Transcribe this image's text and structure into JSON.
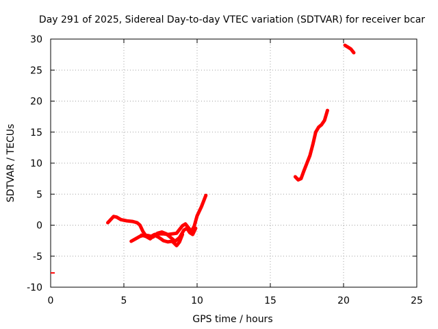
{
  "chart_data": {
    "type": "scatter",
    "title": "Day 291 of 2025, Sidereal Day-to-day VTEC variation (SDTVAR) for receiver bcar",
    "xlabel": "GPS time / hours",
    "ylabel": "SDTVAR / TECUs",
    "xlim": [
      0,
      25
    ],
    "ylim": [
      -10,
      30
    ],
    "xticks": [
      0,
      5,
      10,
      15,
      20,
      25
    ],
    "yticks": [
      -10,
      -5,
      0,
      5,
      10,
      15,
      20,
      25,
      30
    ],
    "grid": true,
    "legend": "none",
    "series_color": "#ff0000",
    "series": [
      {
        "values": [
          [
            3.9,
            0.4
          ],
          [
            4.1,
            0.9
          ],
          [
            4.3,
            1.4
          ],
          [
            4.5,
            1.3
          ],
          [
            4.8,
            0.9
          ],
          [
            5.2,
            0.7
          ],
          [
            5.6,
            0.6
          ],
          [
            5.9,
            0.4
          ],
          [
            6.1,
            0.0
          ],
          [
            6.3,
            -1.0
          ],
          [
            6.5,
            -1.7
          ],
          [
            6.8,
            -1.9
          ],
          [
            7.1,
            -1.5
          ],
          [
            7.4,
            -1.4
          ],
          [
            7.7,
            -1.4
          ],
          [
            8.0,
            -1.5
          ],
          [
            8.3,
            -1.4
          ],
          [
            8.6,
            -1.3
          ],
          [
            8.8,
            -0.7
          ],
          [
            9.0,
            -0.1
          ],
          [
            9.2,
            0.2
          ],
          [
            9.4,
            -0.4
          ],
          [
            9.6,
            -1.0
          ],
          [
            9.8,
            -0.2
          ],
          [
            10.0,
            1.5
          ],
          [
            10.3,
            3.0
          ],
          [
            10.6,
            4.8
          ]
        ]
      },
      {
        "values": [
          [
            5.5,
            -2.6
          ],
          [
            5.8,
            -2.2
          ],
          [
            6.1,
            -1.8
          ],
          [
            6.4,
            -1.6
          ],
          [
            6.7,
            -1.7
          ],
          [
            7.0,
            -1.9
          ],
          [
            7.3,
            -1.3
          ],
          [
            7.6,
            -1.1
          ],
          [
            7.9,
            -1.4
          ],
          [
            8.2,
            -2.0
          ],
          [
            8.5,
            -2.6
          ],
          [
            8.8,
            -2.0
          ],
          [
            9.1,
            -0.8
          ],
          [
            9.3,
            -0.5
          ],
          [
            9.5,
            -1.2
          ],
          [
            9.7,
            -1.5
          ],
          [
            9.9,
            -0.5
          ]
        ]
      },
      {
        "values": [
          [
            6.2,
            -1.6
          ],
          [
            6.5,
            -1.8
          ],
          [
            6.8,
            -2.2
          ],
          [
            7.1,
            -1.6
          ],
          [
            7.4,
            -2.0
          ],
          [
            7.7,
            -2.5
          ],
          [
            8.0,
            -2.7
          ],
          [
            8.3,
            -2.6
          ],
          [
            8.6,
            -3.3
          ],
          [
            8.8,
            -2.7
          ],
          [
            9.0,
            -1.5
          ]
        ]
      },
      {
        "values": [
          [
            16.7,
            7.8
          ],
          [
            16.9,
            7.3
          ],
          [
            17.1,
            7.5
          ],
          [
            17.3,
            8.8
          ],
          [
            17.5,
            10.0
          ],
          [
            17.7,
            11.2
          ],
          [
            17.9,
            13.0
          ],
          [
            18.1,
            15.0
          ],
          [
            18.3,
            15.8
          ],
          [
            18.5,
            16.2
          ],
          [
            18.7,
            16.9
          ],
          [
            18.9,
            18.5
          ]
        ]
      },
      {
        "values": [
          [
            20.1,
            29.0
          ],
          [
            20.3,
            28.7
          ],
          [
            20.5,
            28.4
          ],
          [
            20.7,
            27.8
          ]
        ]
      },
      {
        "values": [
          [
            0.0,
            -7.7
          ]
        ]
      }
    ]
  }
}
